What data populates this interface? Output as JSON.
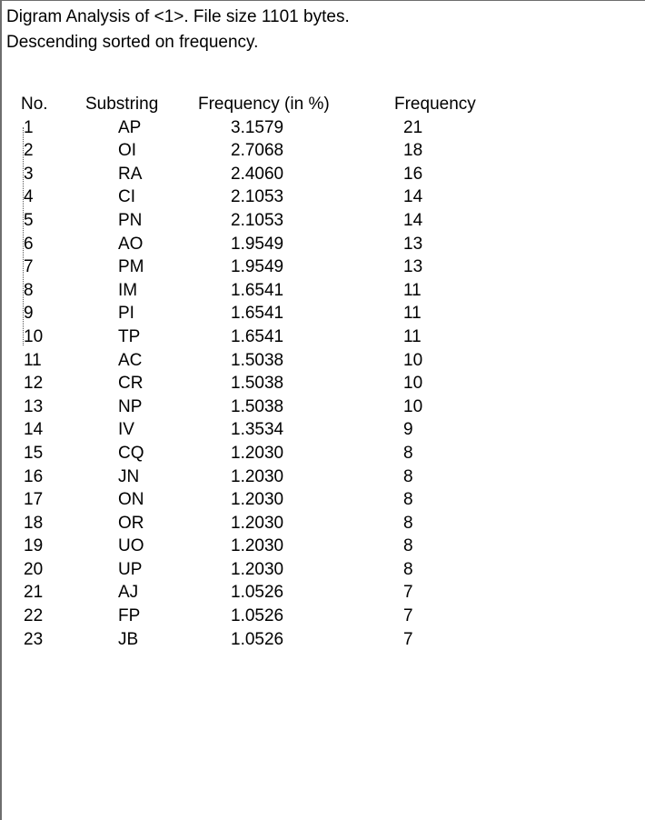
{
  "header": {
    "line1": "Digram Analysis of <1>. File size 1101 bytes.",
    "line2": "Descending sorted on frequency."
  },
  "table": {
    "columns": [
      "No.",
      "Substring",
      "Frequency (in %)",
      "Frequency"
    ],
    "rows": [
      {
        "no": "1",
        "substring": "AP",
        "percent": "3.1579",
        "frequency": "21"
      },
      {
        "no": "2",
        "substring": "OI",
        "percent": "2.7068",
        "frequency": "18"
      },
      {
        "no": "3",
        "substring": "RA",
        "percent": "2.4060",
        "frequency": "16"
      },
      {
        "no": "4",
        "substring": "CI",
        "percent": "2.1053",
        "frequency": "14"
      },
      {
        "no": "5",
        "substring": "PN",
        "percent": "2.1053",
        "frequency": "14"
      },
      {
        "no": "6",
        "substring": "AO",
        "percent": "1.9549",
        "frequency": "13"
      },
      {
        "no": "7",
        "substring": "PM",
        "percent": "1.9549",
        "frequency": "13"
      },
      {
        "no": "8",
        "substring": "IM",
        "percent": "1.6541",
        "frequency": "11"
      },
      {
        "no": "9",
        "substring": "PI",
        "percent": "1.6541",
        "frequency": "11"
      },
      {
        "no": "10",
        "substring": "TP",
        "percent": "1.6541",
        "frequency": "11"
      },
      {
        "no": "11",
        "substring": "AC",
        "percent": "1.5038",
        "frequency": "10"
      },
      {
        "no": "12",
        "substring": "CR",
        "percent": "1.5038",
        "frequency": "10"
      },
      {
        "no": "13",
        "substring": "NP",
        "percent": "1.5038",
        "frequency": "10"
      },
      {
        "no": "14",
        "substring": "IV",
        "percent": "1.3534",
        "frequency": "9"
      },
      {
        "no": "15",
        "substring": "CQ",
        "percent": "1.2030",
        "frequency": "8"
      },
      {
        "no": "16",
        "substring": "JN",
        "percent": "1.2030",
        "frequency": "8"
      },
      {
        "no": "17",
        "substring": "ON",
        "percent": "1.2030",
        "frequency": "8"
      },
      {
        "no": "18",
        "substring": "OR",
        "percent": "1.2030",
        "frequency": "8"
      },
      {
        "no": "19",
        "substring": "UO",
        "percent": "1.2030",
        "frequency": "8"
      },
      {
        "no": "20",
        "substring": "UP",
        "percent": "1.2030",
        "frequency": "8"
      },
      {
        "no": "21",
        "substring": "AJ",
        "percent": "1.0526",
        "frequency": "7"
      },
      {
        "no": "22",
        "substring": "FP",
        "percent": "1.0526",
        "frequency": "7"
      },
      {
        "no": "23",
        "substring": "JB",
        "percent": "1.0526",
        "frequency": "7"
      }
    ]
  }
}
